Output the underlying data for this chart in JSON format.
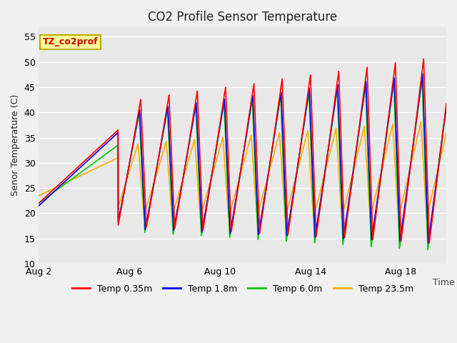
{
  "title": "CO2 Profile Sensor Temperature",
  "ylabel": "Senor Temperature (C)",
  "xlabel": "Time",
  "legend_label": "TZ_co2prof",
  "ylim": [
    10,
    57
  ],
  "yticks": [
    10,
    15,
    20,
    25,
    30,
    35,
    40,
    45,
    50,
    55
  ],
  "xtick_labels": [
    "Aug 2",
    "Aug 6",
    "Aug 10",
    "Aug 14",
    "Aug 18"
  ],
  "xtick_positions": [
    0,
    4,
    8,
    12,
    16
  ],
  "xlim": [
    0,
    18
  ],
  "series": [
    {
      "label": "Temp 0.35m",
      "color": "#ff0000"
    },
    {
      "label": "Temp 1.8m",
      "color": "#0000ee"
    },
    {
      "label": "Temp 6.0m",
      "color": "#00cc00"
    },
    {
      "label": "Temp 23.5m",
      "color": "#ffaa00"
    }
  ],
  "fig_bg_color": "#f0f0f0",
  "plot_bg_color": "#e8e8e8",
  "legend_box_facecolor": "#ffff99",
  "legend_box_edgecolor": "#bbaa00",
  "legend_text_color": "#cc0000",
  "grid_color": "#ffffff",
  "cycle_period": 1.25,
  "n_points": 3000
}
